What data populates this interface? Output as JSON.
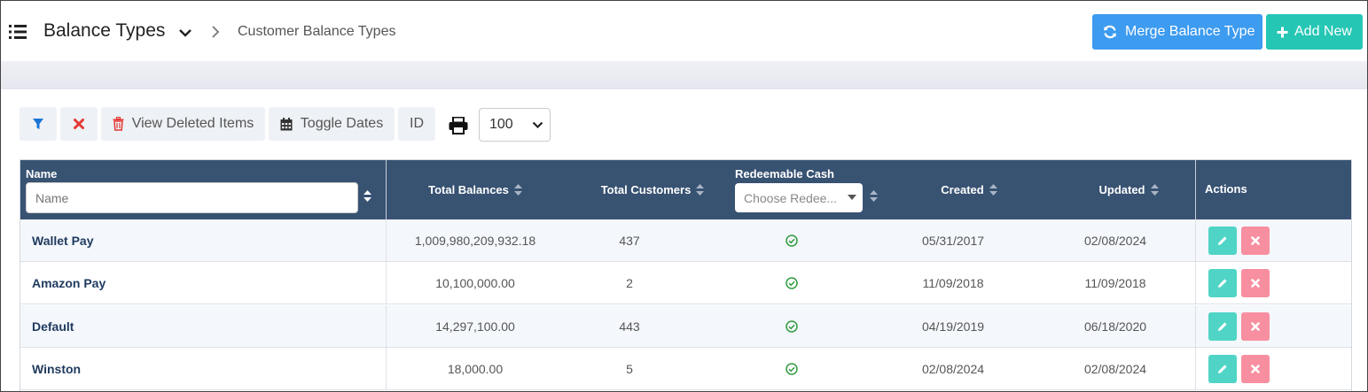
{
  "header": {
    "title": "Balance Types",
    "breadcrumb": "Customer Balance Types",
    "merge_label": "Merge Balance Type",
    "add_label": "Add New"
  },
  "toolbar": {
    "deleted_label": "View Deleted Items",
    "dates_label": "Toggle Dates",
    "id_label": "ID",
    "page_size": "100"
  },
  "table": {
    "columns": {
      "name": "Name",
      "total_balances": "Total Balances",
      "total_customers": "Total Customers",
      "redeemable_cash": "Redeemable Cash",
      "created": "Created",
      "updated": "Updated",
      "actions": "Actions"
    },
    "name_placeholder": "Name",
    "redeemable_placeholder": "Choose Redee...",
    "rows": [
      {
        "name": "Wallet Pay",
        "total_balances": "1,009,980,209,932.18",
        "total_customers": "437",
        "redeemable": true,
        "created": "05/31/2017",
        "updated": "02/08/2024"
      },
      {
        "name": "Amazon Pay",
        "total_balances": "10,100,000.00",
        "total_customers": "2",
        "redeemable": true,
        "created": "11/09/2018",
        "updated": "11/09/2018"
      },
      {
        "name": "Default",
        "total_balances": "14,297,100.00",
        "total_customers": "443",
        "redeemable": true,
        "created": "04/19/2019",
        "updated": "06/18/2020"
      },
      {
        "name": "Winston",
        "total_balances": "18,000.00",
        "total_customers": "5",
        "redeemable": true,
        "created": "02/08/2024",
        "updated": "02/08/2024"
      }
    ]
  },
  "colors": {
    "header_bg": "#385272",
    "merge_button": "#3d9bf0",
    "add_button": "#26c6b5",
    "edit_button": "#4fd4c5",
    "delete_button": "#f78fa0",
    "check": "#2e9b3e"
  }
}
